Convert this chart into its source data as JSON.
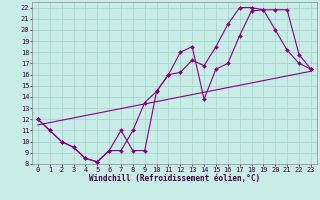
{
  "xlabel": "Windchill (Refroidissement éolien,°C)",
  "bg_color": "#c8ece6",
  "grid_color": "#a8d8d0",
  "line_color": "#880088",
  "xlim": [
    -0.5,
    23.5
  ],
  "ylim": [
    8,
    22.5
  ],
  "xticks": [
    0,
    1,
    2,
    3,
    4,
    5,
    6,
    7,
    8,
    9,
    10,
    11,
    12,
    13,
    14,
    15,
    16,
    17,
    18,
    19,
    20,
    21,
    22,
    23
  ],
  "yticks": [
    8,
    9,
    10,
    11,
    12,
    13,
    14,
    15,
    16,
    17,
    18,
    19,
    20,
    21,
    22
  ],
  "line1_x": [
    0,
    1,
    2,
    3,
    4,
    5,
    6,
    7,
    8,
    9,
    10,
    11,
    12,
    13,
    14,
    15,
    16,
    17,
    18,
    19,
    20,
    21,
    22,
    23
  ],
  "line1_y": [
    12,
    11,
    10,
    9.5,
    8.5,
    8.2,
    9.2,
    11.0,
    9.2,
    9.2,
    14.5,
    16.0,
    18.0,
    18.5,
    13.8,
    16.5,
    17.0,
    19.5,
    21.7,
    21.8,
    21.8,
    21.8,
    17.8,
    16.5
  ],
  "line2_x": [
    0,
    1,
    2,
    3,
    4,
    5,
    6,
    7,
    8,
    9,
    10,
    11,
    12,
    13,
    14,
    15,
    16,
    17,
    18,
    19,
    20,
    21,
    22,
    23
  ],
  "line2_y": [
    12,
    11,
    10,
    9.5,
    8.5,
    8.2,
    9.2,
    9.2,
    11.0,
    13.5,
    14.5,
    16.0,
    16.2,
    17.3,
    16.8,
    18.5,
    20.5,
    22.0,
    22.0,
    21.8,
    20.0,
    18.2,
    17.0,
    16.5
  ],
  "line3_x": [
    0,
    23
  ],
  "line3_y": [
    11.5,
    16.3
  ],
  "xlabel_color": "#440044",
  "tick_color": "#440044",
  "tick_fontsize": 5.0,
  "xlabel_fontsize": 5.5
}
